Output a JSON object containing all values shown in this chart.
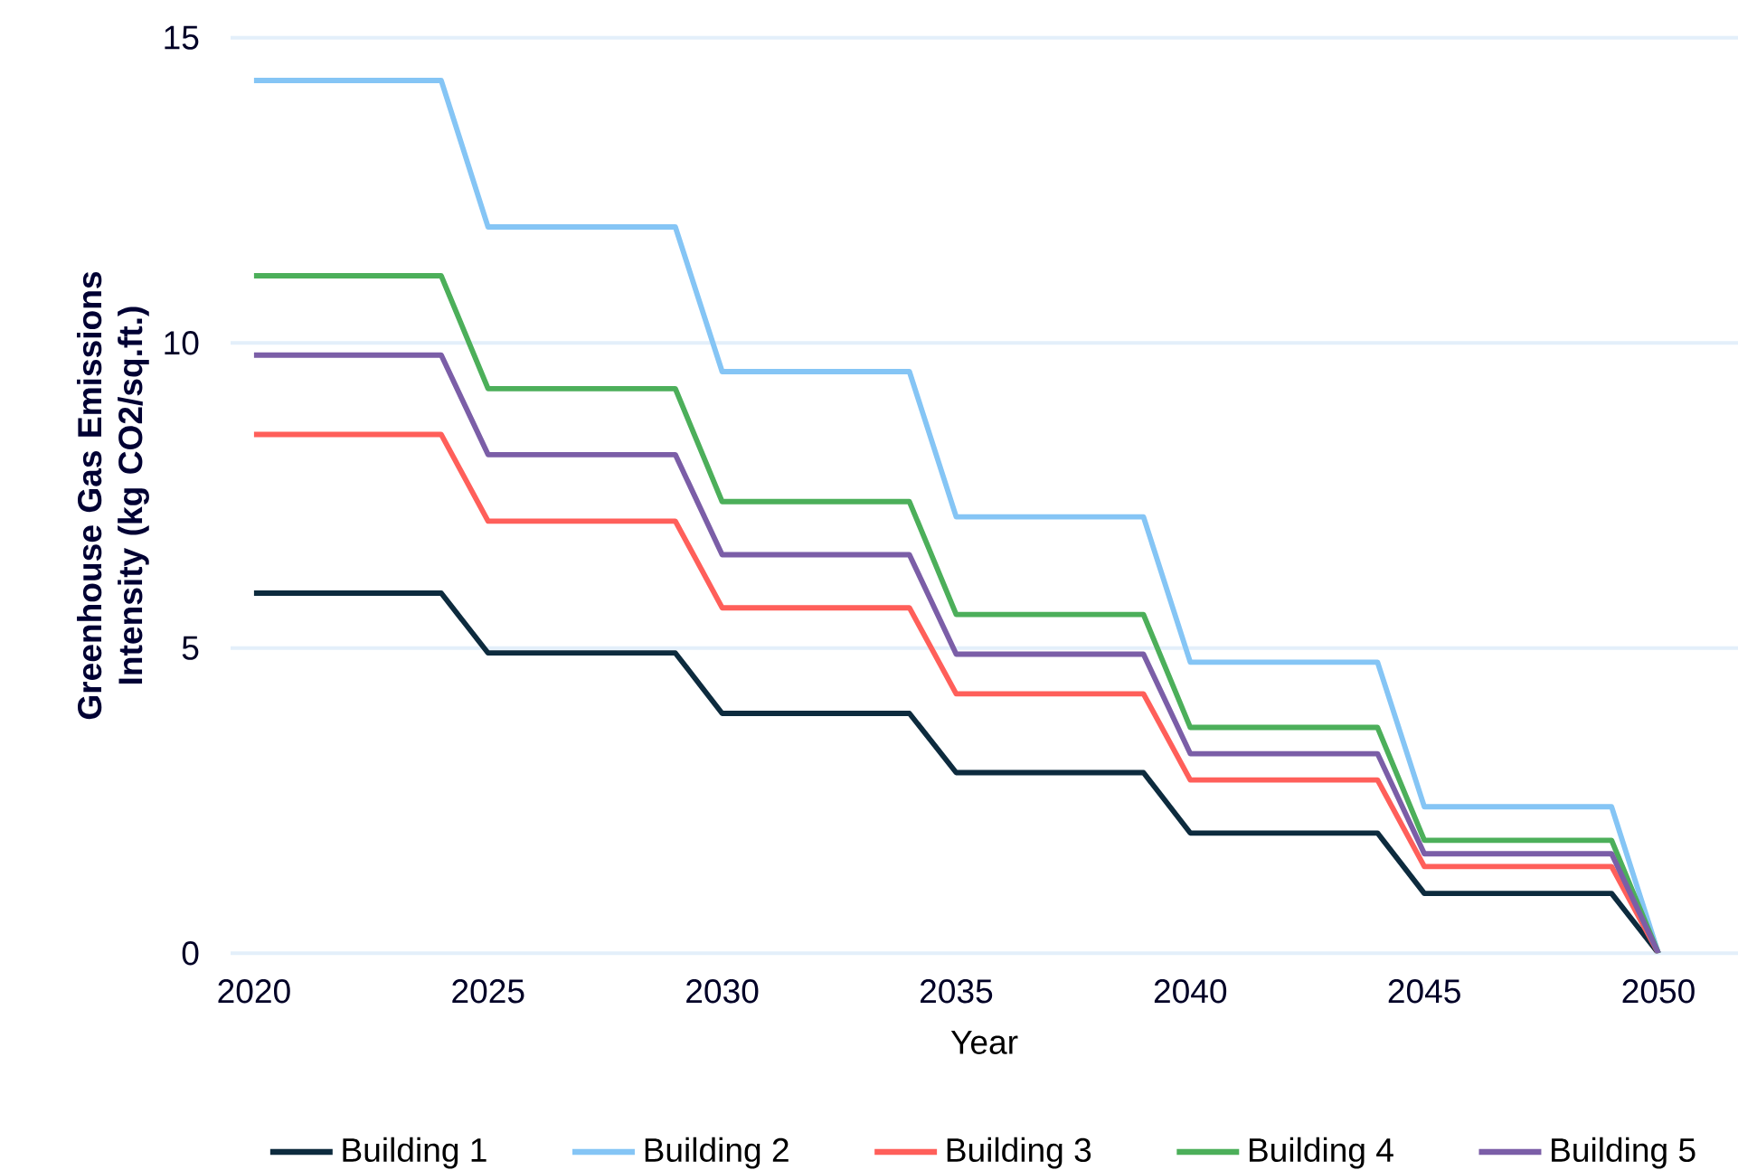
{
  "chart_data": {
    "type": "line",
    "xlabel": "Year",
    "ylabel": "Greenhouse Gas Emissions Intensity (kg CO2/sq.ft.)",
    "x": [
      2020,
      2024,
      2025,
      2029,
      2030,
      2034,
      2035,
      2039,
      2040,
      2044,
      2045,
      2049,
      2050
    ],
    "series": [
      {
        "name": "Building 1",
        "color": "#0d2b3e",
        "values": [
          5.9,
          5.9,
          4.92,
          4.92,
          3.93,
          3.93,
          2.96,
          2.96,
          1.97,
          1.97,
          0.98,
          0.98,
          0
        ]
      },
      {
        "name": "Building 2",
        "color": "#85c5f5",
        "values": [
          14.3,
          14.3,
          11.9,
          11.9,
          9.53,
          9.53,
          7.15,
          7.15,
          4.77,
          4.77,
          2.4,
          2.4,
          0
        ]
      },
      {
        "name": "Building 3",
        "color": "#ff5f5a",
        "values": [
          8.5,
          8.5,
          7.08,
          7.08,
          5.66,
          5.66,
          4.25,
          4.25,
          2.84,
          2.84,
          1.42,
          1.42,
          0
        ]
      },
      {
        "name": "Building 4",
        "color": "#4caf5a",
        "values": [
          11.1,
          11.1,
          9.25,
          9.25,
          7.4,
          7.4,
          5.55,
          5.55,
          3.7,
          3.7,
          1.85,
          1.85,
          0
        ]
      },
      {
        "name": "Building 5",
        "color": "#7b5ea7",
        "values": [
          9.8,
          9.8,
          8.17,
          8.17,
          6.53,
          6.53,
          4.9,
          4.9,
          3.27,
          3.27,
          1.63,
          1.63,
          0
        ]
      }
    ],
    "xlim": [
      2019.5,
      2051.7
    ],
    "xticks": [
      2020,
      2025,
      2030,
      2035,
      2040,
      2045,
      2050
    ],
    "ylim": [
      0,
      15
    ],
    "yticks": [
      0,
      5,
      10,
      15
    ],
    "grid": "y",
    "legend": "bottom",
    "line_style": "solid",
    "marker": "none"
  }
}
